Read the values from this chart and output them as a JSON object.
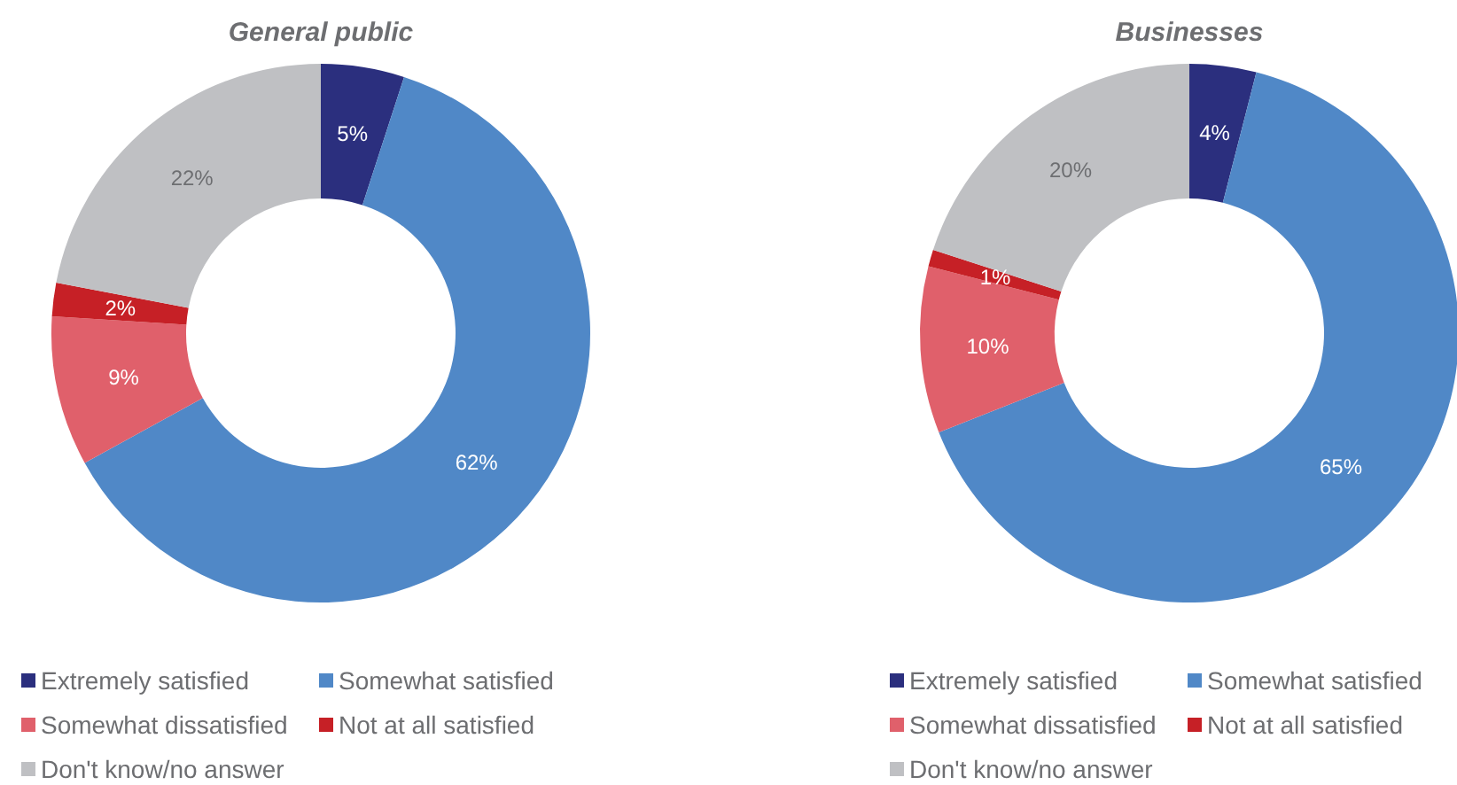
{
  "chart_data": [
    {
      "type": "donut",
      "title": "General public",
      "categories": [
        "Extremely satisfied",
        "Somewhat satisfied",
        "Somewhat dissatisfied",
        "Not at all satisfied",
        "Don't know/no answer"
      ],
      "values": [
        5,
        62,
        9,
        2,
        22
      ],
      "value_labels": [
        "5%",
        "62%",
        "9%",
        "2%",
        "22%"
      ],
      "colors": [
        "#2b2f7e",
        "#5088c7",
        "#e0606b",
        "#c62026",
        "#bfc0c3"
      ],
      "legend": "bottom"
    },
    {
      "type": "donut",
      "title": "Businesses",
      "categories": [
        "Extremely satisfied",
        "Somewhat satisfied",
        "Somewhat dissatisfied",
        "Not at all satisfied",
        "Don't know/no answer"
      ],
      "values": [
        4,
        65,
        10,
        1,
        20
      ],
      "value_labels": [
        "4%",
        "65%",
        "10%",
        "1%",
        "20%"
      ],
      "colors": [
        "#2b2f7e",
        "#5088c7",
        "#e0606b",
        "#c62026",
        "#bfc0c3"
      ],
      "legend": "bottom"
    }
  ]
}
